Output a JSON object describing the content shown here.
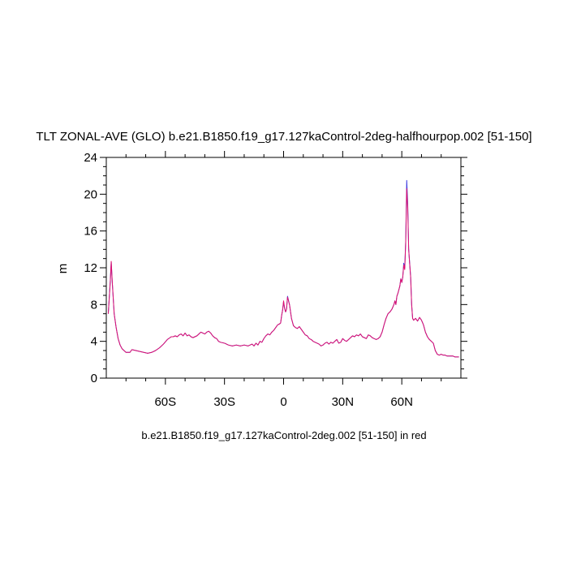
{
  "chart_data": {
    "type": "line",
    "title": "TLT ZONAL-AVE (GLO) b.e21.B1850.f19_g17.127kaControl-2deg-halfhourpop.002 [51-150]",
    "xlabel": "b.e21.B1850.f19_g17.127kaControl-2deg.002 [51-150] in red",
    "ylabel": "m",
    "xlim": [
      -90,
      90
    ],
    "ylim": [
      0,
      24
    ],
    "x_ticks": [
      {
        "value": -60,
        "label": "60S"
      },
      {
        "value": -30,
        "label": "30S"
      },
      {
        "value": 0,
        "label": "0"
      },
      {
        "value": 30,
        "label": "30N"
      },
      {
        "value": 60,
        "label": "60N"
      }
    ],
    "y_ticks": [
      0,
      4,
      8,
      12,
      16,
      20,
      24
    ],
    "grid": false,
    "series": [
      {
        "color": "#3a3ae0",
        "x": [
          -89,
          -88,
          -87.5,
          -87,
          -86,
          -85,
          -84,
          -83,
          -82,
          -81,
          -80,
          -79,
          -78,
          -77,
          -75,
          -73,
          -71,
          -69,
          -67,
          -65,
          -63,
          -61,
          -59,
          -57,
          -56,
          -55,
          -54,
          -53,
          -52,
          -51,
          -50,
          -49,
          -48,
          -47,
          -46,
          -45,
          -44,
          -43,
          -42,
          -41,
          -40,
          -39,
          -38,
          -37,
          -36,
          -35,
          -34,
          -33,
          -32,
          -30,
          -28,
          -26,
          -24,
          -22,
          -20,
          -18,
          -16,
          -15,
          -14,
          -13,
          -12,
          -11,
          -10,
          -9,
          -8,
          -7,
          -6,
          -5,
          -4,
          -3,
          -2,
          -1.5,
          -1,
          -0.5,
          0,
          0.5,
          1,
          1.5,
          2,
          3,
          4,
          5,
          6,
          7,
          8,
          9,
          10,
          11,
          12,
          13,
          14,
          15,
          16,
          17,
          18,
          19,
          20,
          21,
          22,
          23,
          24,
          25,
          26,
          27,
          28,
          29,
          30,
          31,
          32,
          33,
          34,
          35,
          36,
          37,
          38,
          39,
          40,
          41,
          42,
          43,
          44,
          45,
          46,
          47,
          48,
          49,
          50,
          51,
          52,
          53,
          54,
          55,
          56,
          56.5,
          57,
          57.5,
          58,
          58.5,
          59,
          59.5,
          60,
          60.5,
          61,
          61.5,
          62,
          62.5,
          63,
          63.5,
          64,
          64.5,
          65,
          65.5,
          66,
          67,
          68,
          69,
          70,
          71,
          72,
          73,
          74,
          75,
          76,
          77,
          78,
          79,
          80,
          81,
          82,
          83,
          84,
          85,
          86,
          87,
          88,
          89
        ],
        "values": [
          7.0,
          10.5,
          12.6,
          10.5,
          7.0,
          5.5,
          4.3,
          3.6,
          3.2,
          3.0,
          2.8,
          2.8,
          2.8,
          3.1,
          3.0,
          2.9,
          2.8,
          2.7,
          2.8,
          3.0,
          3.3,
          3.7,
          4.2,
          4.5,
          4.5,
          4.6,
          4.5,
          4.7,
          4.8,
          4.6,
          4.9,
          4.6,
          4.7,
          4.5,
          4.4,
          4.5,
          4.6,
          4.8,
          5.0,
          4.9,
          4.8,
          5.0,
          5.1,
          4.9,
          4.6,
          4.4,
          4.3,
          4.0,
          3.9,
          3.8,
          3.6,
          3.5,
          3.6,
          3.5,
          3.6,
          3.5,
          3.7,
          3.5,
          3.8,
          3.6,
          4.0,
          3.9,
          4.3,
          4.6,
          4.8,
          4.7,
          5.0,
          5.2,
          5.5,
          5.8,
          5.9,
          6.0,
          6.8,
          7.4,
          8.3,
          7.6,
          7.2,
          7.5,
          8.9,
          8.0,
          6.5,
          5.7,
          5.5,
          5.4,
          5.6,
          5.3,
          5.0,
          4.7,
          4.6,
          4.3,
          4.2,
          4.0,
          3.9,
          3.8,
          3.7,
          3.5,
          3.6,
          3.8,
          3.9,
          3.7,
          3.9,
          3.8,
          4.0,
          4.2,
          3.8,
          3.9,
          4.3,
          4.1,
          4.0,
          4.2,
          4.4,
          4.6,
          4.5,
          4.7,
          4.6,
          4.8,
          4.5,
          4.4,
          4.3,
          4.7,
          4.6,
          4.4,
          4.3,
          4.2,
          4.3,
          4.5,
          5.0,
          5.8,
          6.5,
          7.0,
          7.2,
          7.5,
          8.0,
          8.4,
          8.0,
          8.9,
          9.2,
          9.6,
          10.0,
          10.8,
          10.4,
          11.0,
          12.5,
          12.0,
          15.0,
          21.5,
          19.0,
          14.0,
          12.5,
          11.0,
          8.0,
          6.5,
          6.3,
          6.5,
          6.2,
          6.6,
          6.3,
          5.8,
          5.0,
          4.5,
          4.2,
          4.0,
          3.8,
          3.0,
          2.6,
          2.5,
          2.6,
          2.5,
          2.5,
          2.4,
          2.4,
          2.4,
          2.4,
          2.3,
          2.3,
          2.3
        ]
      },
      {
        "color": "#e0106e",
        "x": [
          -89,
          -88,
          -87.5,
          -87,
          -86,
          -85,
          -84,
          -83,
          -82,
          -81,
          -80,
          -79,
          -78,
          -77,
          -75,
          -73,
          -71,
          -69,
          -67,
          -65,
          -63,
          -61,
          -59,
          -57,
          -56,
          -55,
          -54,
          -53,
          -52,
          -51,
          -50,
          -49,
          -48,
          -47,
          -46,
          -45,
          -44,
          -43,
          -42,
          -41,
          -40,
          -39,
          -38,
          -37,
          -36,
          -35,
          -34,
          -33,
          -32,
          -30,
          -28,
          -26,
          -24,
          -22,
          -20,
          -18,
          -16,
          -15,
          -14,
          -13,
          -12,
          -11,
          -10,
          -9,
          -8,
          -7,
          -6,
          -5,
          -4,
          -3,
          -2,
          -1.5,
          -1,
          -0.5,
          0,
          0.5,
          1,
          1.5,
          2,
          3,
          4,
          5,
          6,
          7,
          8,
          9,
          10,
          11,
          12,
          13,
          14,
          15,
          16,
          17,
          18,
          19,
          20,
          21,
          22,
          23,
          24,
          25,
          26,
          27,
          28,
          29,
          30,
          31,
          32,
          33,
          34,
          35,
          36,
          37,
          38,
          39,
          40,
          41,
          42,
          43,
          44,
          45,
          46,
          47,
          48,
          49,
          50,
          51,
          52,
          53,
          54,
          55,
          56,
          56.5,
          57,
          57.5,
          58,
          58.5,
          59,
          59.5,
          60,
          60.5,
          61,
          61.5,
          62,
          62.5,
          63,
          63.5,
          64,
          64.5,
          65,
          65.5,
          66,
          67,
          68,
          69,
          70,
          71,
          72,
          73,
          74,
          75,
          76,
          77,
          78,
          79,
          80,
          81,
          82,
          83,
          84,
          85,
          86,
          87,
          88,
          89
        ],
        "values": [
          7.0,
          10.4,
          12.7,
          10.6,
          7.0,
          5.5,
          4.3,
          3.6,
          3.2,
          3.0,
          2.8,
          2.8,
          2.8,
          3.1,
          3.0,
          2.9,
          2.8,
          2.7,
          2.8,
          3.0,
          3.3,
          3.7,
          4.2,
          4.5,
          4.5,
          4.6,
          4.5,
          4.7,
          4.8,
          4.6,
          4.9,
          4.6,
          4.7,
          4.5,
          4.4,
          4.5,
          4.6,
          4.8,
          5.0,
          4.9,
          4.8,
          5.0,
          5.1,
          4.9,
          4.6,
          4.4,
          4.3,
          4.0,
          3.9,
          3.8,
          3.6,
          3.5,
          3.6,
          3.5,
          3.6,
          3.5,
          3.7,
          3.5,
          3.8,
          3.6,
          4.0,
          3.9,
          4.3,
          4.6,
          4.8,
          4.7,
          5.0,
          5.2,
          5.5,
          5.8,
          5.9,
          6.0,
          6.8,
          7.4,
          8.4,
          7.6,
          7.2,
          7.5,
          8.8,
          8.0,
          6.5,
          5.7,
          5.5,
          5.4,
          5.6,
          5.3,
          5.0,
          4.7,
          4.6,
          4.3,
          4.2,
          4.0,
          3.9,
          3.8,
          3.7,
          3.5,
          3.6,
          3.8,
          3.9,
          3.7,
          3.9,
          3.8,
          4.0,
          4.2,
          3.8,
          3.9,
          4.3,
          4.1,
          4.0,
          4.2,
          4.4,
          4.6,
          4.5,
          4.7,
          4.6,
          4.8,
          4.5,
          4.4,
          4.3,
          4.7,
          4.6,
          4.4,
          4.3,
          4.2,
          4.3,
          4.5,
          5.0,
          5.8,
          6.5,
          7.0,
          7.2,
          7.5,
          8.0,
          8.4,
          8.0,
          8.9,
          9.2,
          9.6,
          10.0,
          10.8,
          10.4,
          11.0,
          12.3,
          11.8,
          14.8,
          20.6,
          18.5,
          14.0,
          12.4,
          11.0,
          8.0,
          6.5,
          6.3,
          6.5,
          6.2,
          6.6,
          6.3,
          5.8,
          5.0,
          4.5,
          4.2,
          4.0,
          3.8,
          3.0,
          2.6,
          2.5,
          2.6,
          2.5,
          2.5,
          2.4,
          2.4,
          2.4,
          2.4,
          2.3,
          2.3,
          2.3
        ]
      }
    ]
  }
}
